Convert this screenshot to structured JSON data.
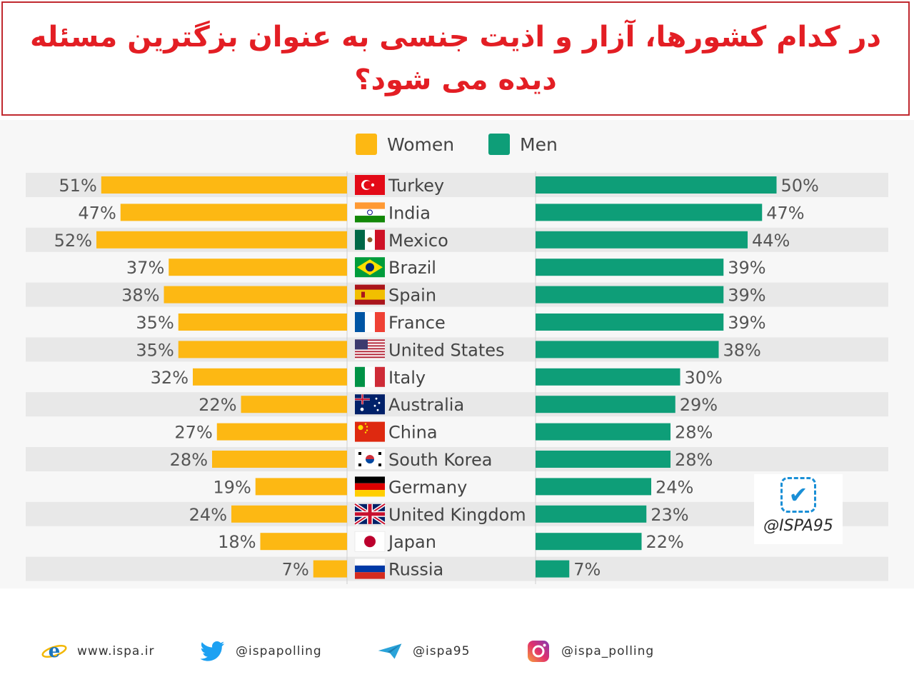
{
  "title": {
    "line1": "در کدام کشورها، آزار و اذیت جنسی به عنوان بزگترین مسئله",
    "line2": "دیده می شود؟"
  },
  "legend": {
    "women": "Women",
    "men": "Men"
  },
  "colors": {
    "women": "#fdb813",
    "men": "#0e9e78",
    "title": "#e31e24",
    "row_stripe": "#e8e8e8"
  },
  "watermark": {
    "text": "@ISPA95",
    "icon": "checkmark-icon"
  },
  "footer": [
    {
      "icon": "internet-explorer-icon",
      "text": "www.ispa.ir"
    },
    {
      "icon": "twitter-bird-icon",
      "text": "@ispapolling"
    },
    {
      "icon": "telegram-plane-icon",
      "text": "@ispa95"
    },
    {
      "icon": "instagram-icon",
      "text": "@ispa_polling"
    }
  ],
  "chart_data": {
    "type": "bar",
    "orientation": "horizontal-butterfly",
    "categories": [
      "Turkey",
      "India",
      "Mexico",
      "Brazil",
      "Spain",
      "France",
      "United States",
      "Italy",
      "Australia",
      "China",
      "South Korea",
      "Germany",
      "United Kingdom",
      "Japan",
      "Russia"
    ],
    "series": [
      {
        "name": "Women",
        "values": [
          51,
          47,
          52,
          37,
          38,
          35,
          35,
          32,
          22,
          27,
          28,
          19,
          24,
          18,
          7
        ]
      },
      {
        "name": "Men",
        "values": [
          50,
          47,
          44,
          39,
          39,
          39,
          38,
          30,
          29,
          28,
          28,
          24,
          23,
          22,
          7
        ]
      }
    ],
    "value_suffix": "%",
    "flag_icons": [
      "turkey-flag-icon",
      "india-flag-icon",
      "mexico-flag-icon",
      "brazil-flag-icon",
      "spain-flag-icon",
      "france-flag-icon",
      "usa-flag-icon",
      "italy-flag-icon",
      "australia-flag-icon",
      "china-flag-icon",
      "south-korea-flag-icon",
      "germany-flag-icon",
      "uk-flag-icon",
      "japan-flag-icon",
      "russia-flag-icon"
    ],
    "xlim": [
      0,
      52
    ],
    "legend_position": "top-center",
    "grid": false
  }
}
